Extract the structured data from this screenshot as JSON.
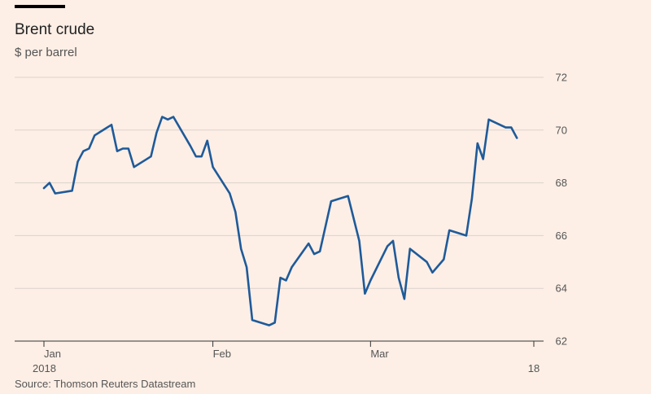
{
  "header": {
    "title": "Brent crude",
    "subtitle": "$ per barrel"
  },
  "footer": {
    "source": "Source: Thomson Reuters Datastream"
  },
  "colors": {
    "background": "#fdefe6",
    "line": "#1f5a99",
    "grid": "#dcd2cb",
    "axis": "#333333"
  },
  "chart_data": {
    "type": "line",
    "title": "Brent crude",
    "ylabel": "$ per barrel",
    "xlabel": "",
    "ylim": [
      62,
      72
    ],
    "y_ticks": [
      62,
      64,
      66,
      68,
      70,
      72
    ],
    "x_ticks": [
      {
        "label": "Jan",
        "sublabel": "2018",
        "date": "2018-01-02"
      },
      {
        "label": "Feb",
        "sublabel": "",
        "date": "2018-02-01"
      },
      {
        "label": "Mar",
        "sublabel": "",
        "date": "2018-03-01"
      },
      {
        "label": "",
        "sublabel": "18",
        "date": "2018-03-30"
      }
    ],
    "grid": true,
    "y_axis_side": "right",
    "series": [
      {
        "points": [
          [
            "2018-01-02",
            67.8
          ],
          [
            "2018-01-03",
            68.0
          ],
          [
            "2018-01-04",
            67.6
          ],
          [
            "2018-01-07",
            67.7
          ],
          [
            "2018-01-08",
            68.8
          ],
          [
            "2018-01-09",
            69.2
          ],
          [
            "2018-01-10",
            69.3
          ],
          [
            "2018-01-11",
            69.8
          ],
          [
            "2018-01-14",
            70.2
          ],
          [
            "2018-01-15",
            69.2
          ],
          [
            "2018-01-16",
            69.3
          ],
          [
            "2018-01-17",
            69.3
          ],
          [
            "2018-01-18",
            68.6
          ],
          [
            "2018-01-21",
            69.0
          ],
          [
            "2018-01-22",
            69.9
          ],
          [
            "2018-01-23",
            70.5
          ],
          [
            "2018-01-24",
            70.4
          ],
          [
            "2018-01-25",
            70.5
          ],
          [
            "2018-01-28",
            69.4
          ],
          [
            "2018-01-29",
            69.0
          ],
          [
            "2018-01-30",
            69.0
          ],
          [
            "2018-01-31",
            69.6
          ],
          [
            "2018-02-01",
            68.6
          ],
          [
            "2018-02-04",
            67.6
          ],
          [
            "2018-02-05",
            66.9
          ],
          [
            "2018-02-06",
            65.5
          ],
          [
            "2018-02-07",
            64.8
          ],
          [
            "2018-02-08",
            62.8
          ],
          [
            "2018-02-11",
            62.6
          ],
          [
            "2018-02-12",
            62.7
          ],
          [
            "2018-02-13",
            64.4
          ],
          [
            "2018-02-14",
            64.3
          ],
          [
            "2018-02-15",
            64.8
          ],
          [
            "2018-02-18",
            65.7
          ],
          [
            "2018-02-19",
            65.3
          ],
          [
            "2018-02-20",
            65.4
          ],
          [
            "2018-02-22",
            67.3
          ],
          [
            "2018-02-25",
            67.5
          ],
          [
            "2018-02-27",
            65.8
          ],
          [
            "2018-02-28",
            63.8
          ],
          [
            "2018-03-01",
            64.3
          ],
          [
            "2018-03-04",
            65.6
          ],
          [
            "2018-03-05",
            65.8
          ],
          [
            "2018-03-06",
            64.4
          ],
          [
            "2018-03-07",
            63.6
          ],
          [
            "2018-03-08",
            65.5
          ],
          [
            "2018-03-11",
            65.0
          ],
          [
            "2018-03-12",
            64.6
          ],
          [
            "2018-03-14",
            65.1
          ],
          [
            "2018-03-15",
            66.2
          ],
          [
            "2018-03-18",
            66.0
          ],
          [
            "2018-03-19",
            67.4
          ],
          [
            "2018-03-20",
            69.5
          ],
          [
            "2018-03-21",
            68.9
          ],
          [
            "2018-03-22",
            70.4
          ],
          [
            "2018-03-25",
            70.1
          ],
          [
            "2018-03-26",
            70.1
          ],
          [
            "2018-03-27",
            69.7
          ]
        ]
      }
    ]
  }
}
